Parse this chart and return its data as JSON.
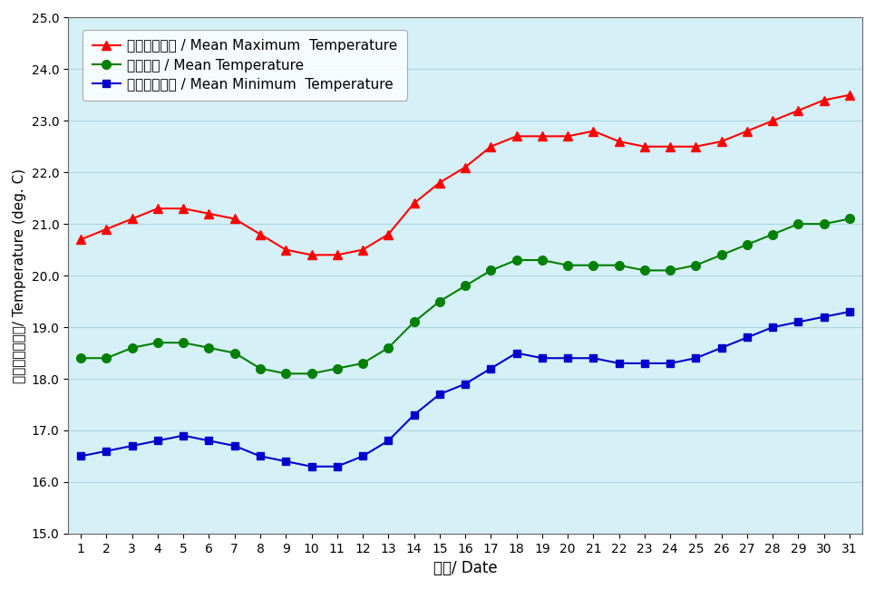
{
  "days": [
    1,
    2,
    3,
    4,
    5,
    6,
    7,
    8,
    9,
    10,
    11,
    12,
    13,
    14,
    15,
    16,
    17,
    18,
    19,
    20,
    21,
    22,
    23,
    24,
    25,
    26,
    27,
    28,
    29,
    30,
    31
  ],
  "mean_max": [
    20.7,
    20.9,
    21.1,
    21.3,
    21.3,
    21.2,
    21.1,
    20.8,
    20.5,
    20.4,
    20.4,
    20.5,
    20.8,
    21.4,
    21.8,
    22.1,
    22.5,
    22.7,
    22.7,
    22.7,
    22.8,
    22.6,
    22.5,
    22.5,
    22.5,
    22.6,
    22.8,
    23.0,
    23.2,
    23.4,
    23.5
  ],
  "mean_temp": [
    18.4,
    18.4,
    18.6,
    18.7,
    18.7,
    18.6,
    18.5,
    18.2,
    18.1,
    18.1,
    18.2,
    18.3,
    18.6,
    19.1,
    19.5,
    19.8,
    20.1,
    20.3,
    20.3,
    20.2,
    20.2,
    20.2,
    20.1,
    20.1,
    20.2,
    20.4,
    20.6,
    20.8,
    21.0,
    21.0,
    21.1
  ],
  "mean_min": [
    16.5,
    16.6,
    16.7,
    16.8,
    16.9,
    16.8,
    16.7,
    16.5,
    16.4,
    16.3,
    16.3,
    16.5,
    16.8,
    17.3,
    17.7,
    17.9,
    18.2,
    18.5,
    18.4,
    18.4,
    18.4,
    18.3,
    18.3,
    18.3,
    18.4,
    18.6,
    18.8,
    19.0,
    19.1,
    19.2,
    19.3
  ],
  "ylabel": "溫度（攝氏度）/ Temperature (deg. C)",
  "xlabel": "日期/ Date",
  "ylim": [
    15.0,
    25.0
  ],
  "yticks": [
    15.0,
    16.0,
    17.0,
    18.0,
    19.0,
    20.0,
    21.0,
    22.0,
    23.0,
    24.0,
    25.0
  ],
  "legend_max": "平均最高氣溫 / Mean Maximum  Temperature",
  "legend_mean": "平均氣溫 / Mean Temperature",
  "legend_min": "平均最低氣溫 / Mean Minimum  Temperature",
  "color_max": "#FF0000",
  "color_mean": "#008000",
  "color_min": "#0000CC",
  "bg_color": "#D6F0F8",
  "legend_bg": "#FFFFFF",
  "fig_bg": "#FFFFFF",
  "grid_color": "#B0D4E0"
}
